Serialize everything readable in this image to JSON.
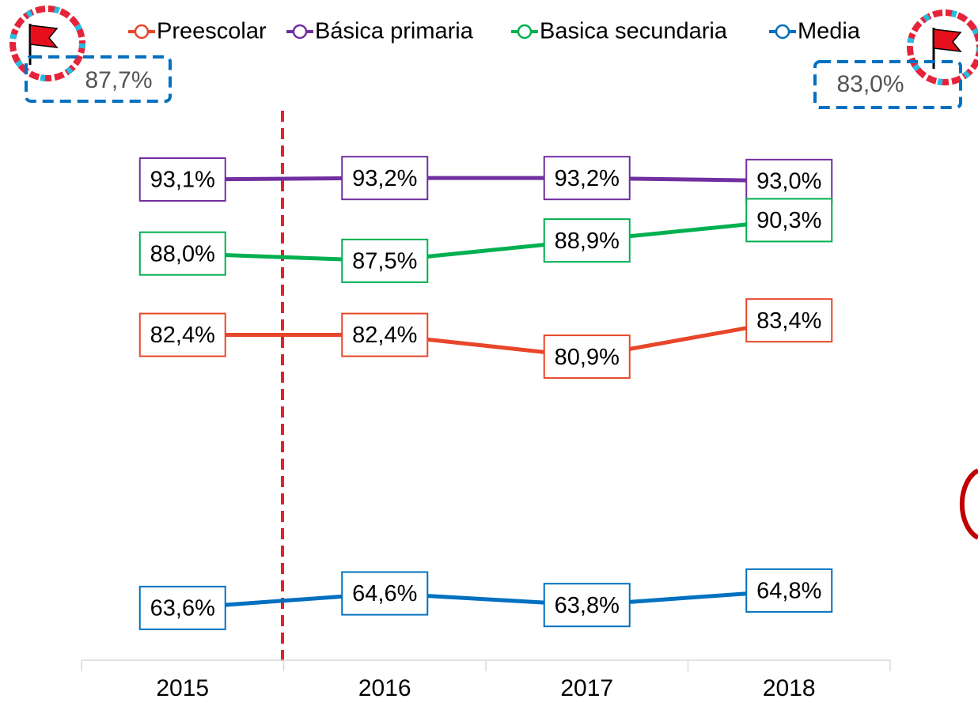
{
  "chart_data": {
    "type": "line",
    "categories": [
      "2015",
      "2016",
      "2017",
      "2018"
    ],
    "series": [
      {
        "name": "Preescolar",
        "color": "#e8462a",
        "values": [
          82.4,
          82.4,
          80.9,
          83.4
        ],
        "value_labels": [
          "82,4%",
          "82,4%",
          "80,9%",
          "83,4%"
        ]
      },
      {
        "name": "Básica primaria",
        "color": "#7030a0",
        "values": [
          93.1,
          93.2,
          93.2,
          93.0
        ],
        "value_labels": [
          "93,1%",
          "93,2%",
          "93,2%",
          "93,0%"
        ]
      },
      {
        "name": "Basica secundaria",
        "color": "#00b050",
        "values": [
          88.0,
          87.5,
          88.9,
          90.3
        ],
        "value_labels": [
          "88,0%",
          "87,5%",
          "88,9%",
          "90,3%"
        ]
      },
      {
        "name": "Media",
        "color": "#0070c0",
        "values": [
          63.6,
          64.6,
          63.8,
          64.8
        ],
        "value_labels": [
          "63,6%",
          "64,6%",
          "63,8%",
          "64,8%"
        ]
      }
    ],
    "ylim": [
      60,
      98
    ],
    "annotations": [
      "87,7%",
      "83,0%"
    ]
  }
}
